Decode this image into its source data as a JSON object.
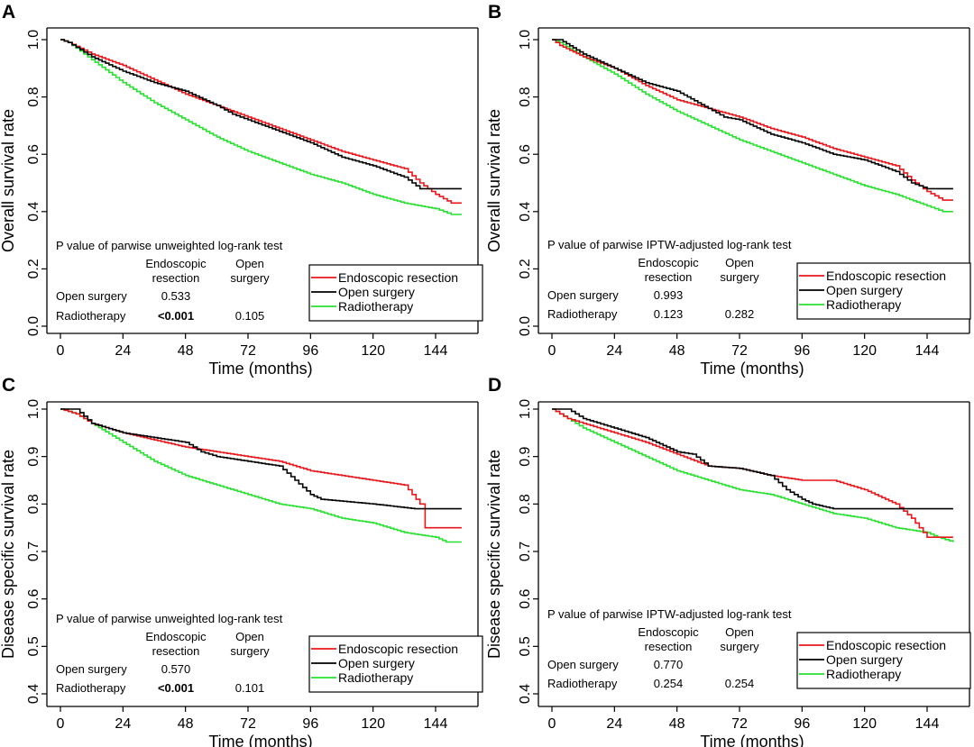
{
  "legend_labels": [
    "Endoscopic resection",
    "Open surgery",
    "Radiotherapy"
  ],
  "series_colors": {
    "Endoscopic resection": "#e8161b",
    "Open surgery": "#000000",
    "Radiotherapy": "#28e030"
  },
  "chart_data": [
    {
      "type": "line",
      "panel": "A",
      "xlabel": "Time (months)",
      "ylabel": "Overall survival rate",
      "xlim": [
        0,
        156
      ],
      "ylim": [
        0,
        1.0
      ],
      "xticks": [
        0,
        24,
        48,
        72,
        96,
        120,
        144
      ],
      "yticks": [
        0.0,
        0.2,
        0.4,
        0.6,
        0.8,
        1.0
      ],
      "ytick_labels": [
        "0.0",
        "0.2",
        "0.4",
        "0.6",
        "0.8",
        "1.0"
      ],
      "series": [
        {
          "name": "Endoscopic resection",
          "x": [
            0,
            3,
            12,
            24,
            36,
            48,
            60,
            72,
            84,
            96,
            108,
            120,
            132,
            138,
            144,
            150,
            154
          ],
          "y": [
            1.0,
            0.99,
            0.95,
            0.91,
            0.86,
            0.81,
            0.77,
            0.73,
            0.69,
            0.65,
            0.61,
            0.58,
            0.55,
            0.5,
            0.46,
            0.43,
            0.43
          ]
        },
        {
          "name": "Open surgery",
          "x": [
            0,
            3,
            12,
            24,
            36,
            48,
            60,
            66,
            72,
            84,
            96,
            108,
            120,
            132,
            138,
            144,
            154
          ],
          "y": [
            1.0,
            0.99,
            0.94,
            0.89,
            0.85,
            0.82,
            0.77,
            0.74,
            0.72,
            0.68,
            0.64,
            0.59,
            0.56,
            0.52,
            0.48,
            0.48,
            0.48
          ]
        },
        {
          "name": "Radiotherapy",
          "x": [
            0,
            3,
            12,
            24,
            36,
            48,
            60,
            72,
            84,
            96,
            108,
            120,
            132,
            144,
            150,
            154
          ],
          "y": [
            1.0,
            0.99,
            0.93,
            0.85,
            0.78,
            0.72,
            0.66,
            0.61,
            0.57,
            0.53,
            0.5,
            0.46,
            0.43,
            0.41,
            0.39,
            0.39
          ]
        }
      ],
      "table": {
        "title": "P value of parwise unweighted log-rank test",
        "col1": [
          "Endoscopic",
          "resection"
        ],
        "col2": [
          "Open",
          "surgery"
        ],
        "rows": [
          {
            "label": "Open surgery",
            "v1": "0.533",
            "v2": "",
            "bold1": false
          },
          {
            "label": "Radiotherapy",
            "v1": "<0.001",
            "v2": "0.105",
            "bold1": true
          }
        ]
      }
    },
    {
      "type": "line",
      "panel": "B",
      "xlabel": "Time (months)",
      "ylabel": "Overall survival rate",
      "xlim": [
        0,
        156
      ],
      "ylim": [
        0,
        1.0
      ],
      "xticks": [
        0,
        24,
        48,
        72,
        96,
        120,
        144
      ],
      "yticks": [
        0.0,
        0.2,
        0.4,
        0.6,
        0.8,
        1.0
      ],
      "ytick_labels": [
        "0.0",
        "0.2",
        "0.4",
        "0.6",
        "0.8",
        "1.0"
      ],
      "series": [
        {
          "name": "Endoscopic resection",
          "x": [
            0,
            3,
            12,
            24,
            36,
            48,
            60,
            72,
            84,
            96,
            108,
            120,
            132,
            138,
            144,
            150,
            154
          ],
          "y": [
            1.0,
            0.98,
            0.94,
            0.9,
            0.84,
            0.79,
            0.76,
            0.73,
            0.69,
            0.66,
            0.62,
            0.59,
            0.56,
            0.51,
            0.47,
            0.44,
            0.44
          ]
        },
        {
          "name": "Open surgery",
          "x": [
            0,
            3,
            12,
            24,
            36,
            48,
            60,
            66,
            72,
            84,
            96,
            108,
            120,
            132,
            138,
            144,
            154
          ],
          "y": [
            1.0,
            1.0,
            0.95,
            0.9,
            0.85,
            0.82,
            0.76,
            0.73,
            0.72,
            0.67,
            0.64,
            0.6,
            0.58,
            0.54,
            0.5,
            0.48,
            0.48
          ]
        },
        {
          "name": "Radiotherapy",
          "x": [
            0,
            3,
            12,
            24,
            36,
            48,
            60,
            72,
            84,
            96,
            108,
            120,
            132,
            144,
            150,
            154
          ],
          "y": [
            1.0,
            0.99,
            0.94,
            0.88,
            0.81,
            0.75,
            0.7,
            0.65,
            0.61,
            0.57,
            0.53,
            0.49,
            0.46,
            0.42,
            0.4,
            0.4
          ]
        }
      ],
      "table": {
        "title": "P value of parwise IPTW-adjusted log-rank test",
        "col1": [
          "Endoscopic",
          "resection"
        ],
        "col2": [
          "Open",
          "surgery"
        ],
        "rows": [
          {
            "label": "Open surgery",
            "v1": "0.993",
            "v2": "",
            "bold1": false
          },
          {
            "label": "Radiotherapy",
            "v1": "0.123",
            "v2": "0.282",
            "bold1": false
          }
        ]
      }
    },
    {
      "type": "line",
      "panel": "C",
      "xlabel": "Time (months)",
      "ylabel": "Disease specific survival rate",
      "xlim": [
        0,
        156
      ],
      "ylim": [
        0.4,
        1.0
      ],
      "xticks": [
        0,
        24,
        48,
        72,
        96,
        120,
        144
      ],
      "yticks": [
        0.4,
        0.5,
        0.6,
        0.7,
        0.8,
        0.9,
        1.0
      ],
      "ytick_labels": [
        "0.4",
        "0.5",
        "0.6",
        "0.7",
        "0.8",
        "0.9",
        "1.0"
      ],
      "series": [
        {
          "name": "Endoscopic resection",
          "x": [
            0,
            6,
            12,
            24,
            36,
            48,
            60,
            72,
            84,
            96,
            108,
            120,
            132,
            138,
            140,
            148,
            154
          ],
          "y": [
            1.0,
            0.99,
            0.97,
            0.95,
            0.935,
            0.92,
            0.91,
            0.9,
            0.89,
            0.87,
            0.86,
            0.85,
            0.84,
            0.8,
            0.75,
            0.75,
            0.75
          ]
        },
        {
          "name": "Open surgery",
          "x": [
            0,
            6,
            12,
            24,
            36,
            48,
            54,
            60,
            72,
            84,
            90,
            96,
            100,
            120,
            136,
            148,
            154
          ],
          "y": [
            1.0,
            1.0,
            0.97,
            0.95,
            0.94,
            0.93,
            0.91,
            0.9,
            0.89,
            0.88,
            0.85,
            0.82,
            0.81,
            0.8,
            0.79,
            0.79,
            0.79
          ]
        },
        {
          "name": "Radiotherapy",
          "x": [
            0,
            6,
            12,
            24,
            36,
            48,
            60,
            72,
            84,
            96,
            108,
            120,
            132,
            144,
            148,
            154
          ],
          "y": [
            1.0,
            0.99,
            0.97,
            0.93,
            0.89,
            0.86,
            0.84,
            0.82,
            0.8,
            0.79,
            0.77,
            0.76,
            0.74,
            0.73,
            0.72,
            0.72
          ]
        }
      ],
      "table": {
        "title": "P value of parwise unweighted log-rank test",
        "col1": [
          "Endoscopic",
          "resection"
        ],
        "col2": [
          "Open",
          "surgery"
        ],
        "rows": [
          {
            "label": "Open surgery",
            "v1": "0.570",
            "v2": "",
            "bold1": false
          },
          {
            "label": "Radiotherapy",
            "v1": "<0.001",
            "v2": "0.101",
            "bold1": true
          }
        ]
      }
    },
    {
      "type": "line",
      "panel": "D",
      "xlabel": "Time (months)",
      "ylabel": "Disease specific survival rate",
      "xlim": [
        0,
        156
      ],
      "ylim": [
        0.4,
        1.0
      ],
      "xticks": [
        0,
        24,
        48,
        72,
        96,
        120,
        144
      ],
      "yticks": [
        0.4,
        0.5,
        0.6,
        0.7,
        0.8,
        0.9,
        1.0
      ],
      "ytick_labels": [
        "0.4",
        "0.5",
        "0.6",
        "0.7",
        "0.8",
        "0.9",
        "1.0"
      ],
      "series": [
        {
          "name": "Endoscopic resection",
          "x": [
            0,
            6,
            12,
            24,
            36,
            48,
            60,
            72,
            84,
            96,
            108,
            120,
            132,
            138,
            144,
            148,
            154
          ],
          "y": [
            1.0,
            0.98,
            0.97,
            0.95,
            0.93,
            0.905,
            0.88,
            0.875,
            0.86,
            0.85,
            0.85,
            0.83,
            0.8,
            0.77,
            0.73,
            0.73,
            0.73
          ]
        },
        {
          "name": "Open surgery",
          "x": [
            0,
            6,
            12,
            24,
            36,
            48,
            54,
            60,
            72,
            84,
            90,
            96,
            100,
            108,
            120,
            148,
            154
          ],
          "y": [
            1.0,
            1.0,
            0.98,
            0.96,
            0.94,
            0.91,
            0.905,
            0.88,
            0.875,
            0.86,
            0.83,
            0.81,
            0.8,
            0.79,
            0.79,
            0.79,
            0.79
          ]
        },
        {
          "name": "Radiotherapy",
          "x": [
            0,
            6,
            12,
            24,
            36,
            48,
            60,
            72,
            84,
            96,
            108,
            120,
            132,
            144,
            148,
            154
          ],
          "y": [
            1.0,
            0.98,
            0.96,
            0.93,
            0.9,
            0.87,
            0.85,
            0.83,
            0.82,
            0.8,
            0.78,
            0.77,
            0.75,
            0.74,
            0.73,
            0.72
          ]
        }
      ],
      "table": {
        "title": "P value of parwise IPTW-adjusted log-rank test",
        "col1": [
          "Endoscopic",
          "resection"
        ],
        "col2": [
          "Open",
          "surgery"
        ],
        "rows": [
          {
            "label": "Open surgery",
            "v1": "0.770",
            "v2": "",
            "bold1": false
          },
          {
            "label": "Radiotherapy",
            "v1": "0.254",
            "v2": "0.254",
            "bold1": false
          }
        ]
      }
    }
  ]
}
